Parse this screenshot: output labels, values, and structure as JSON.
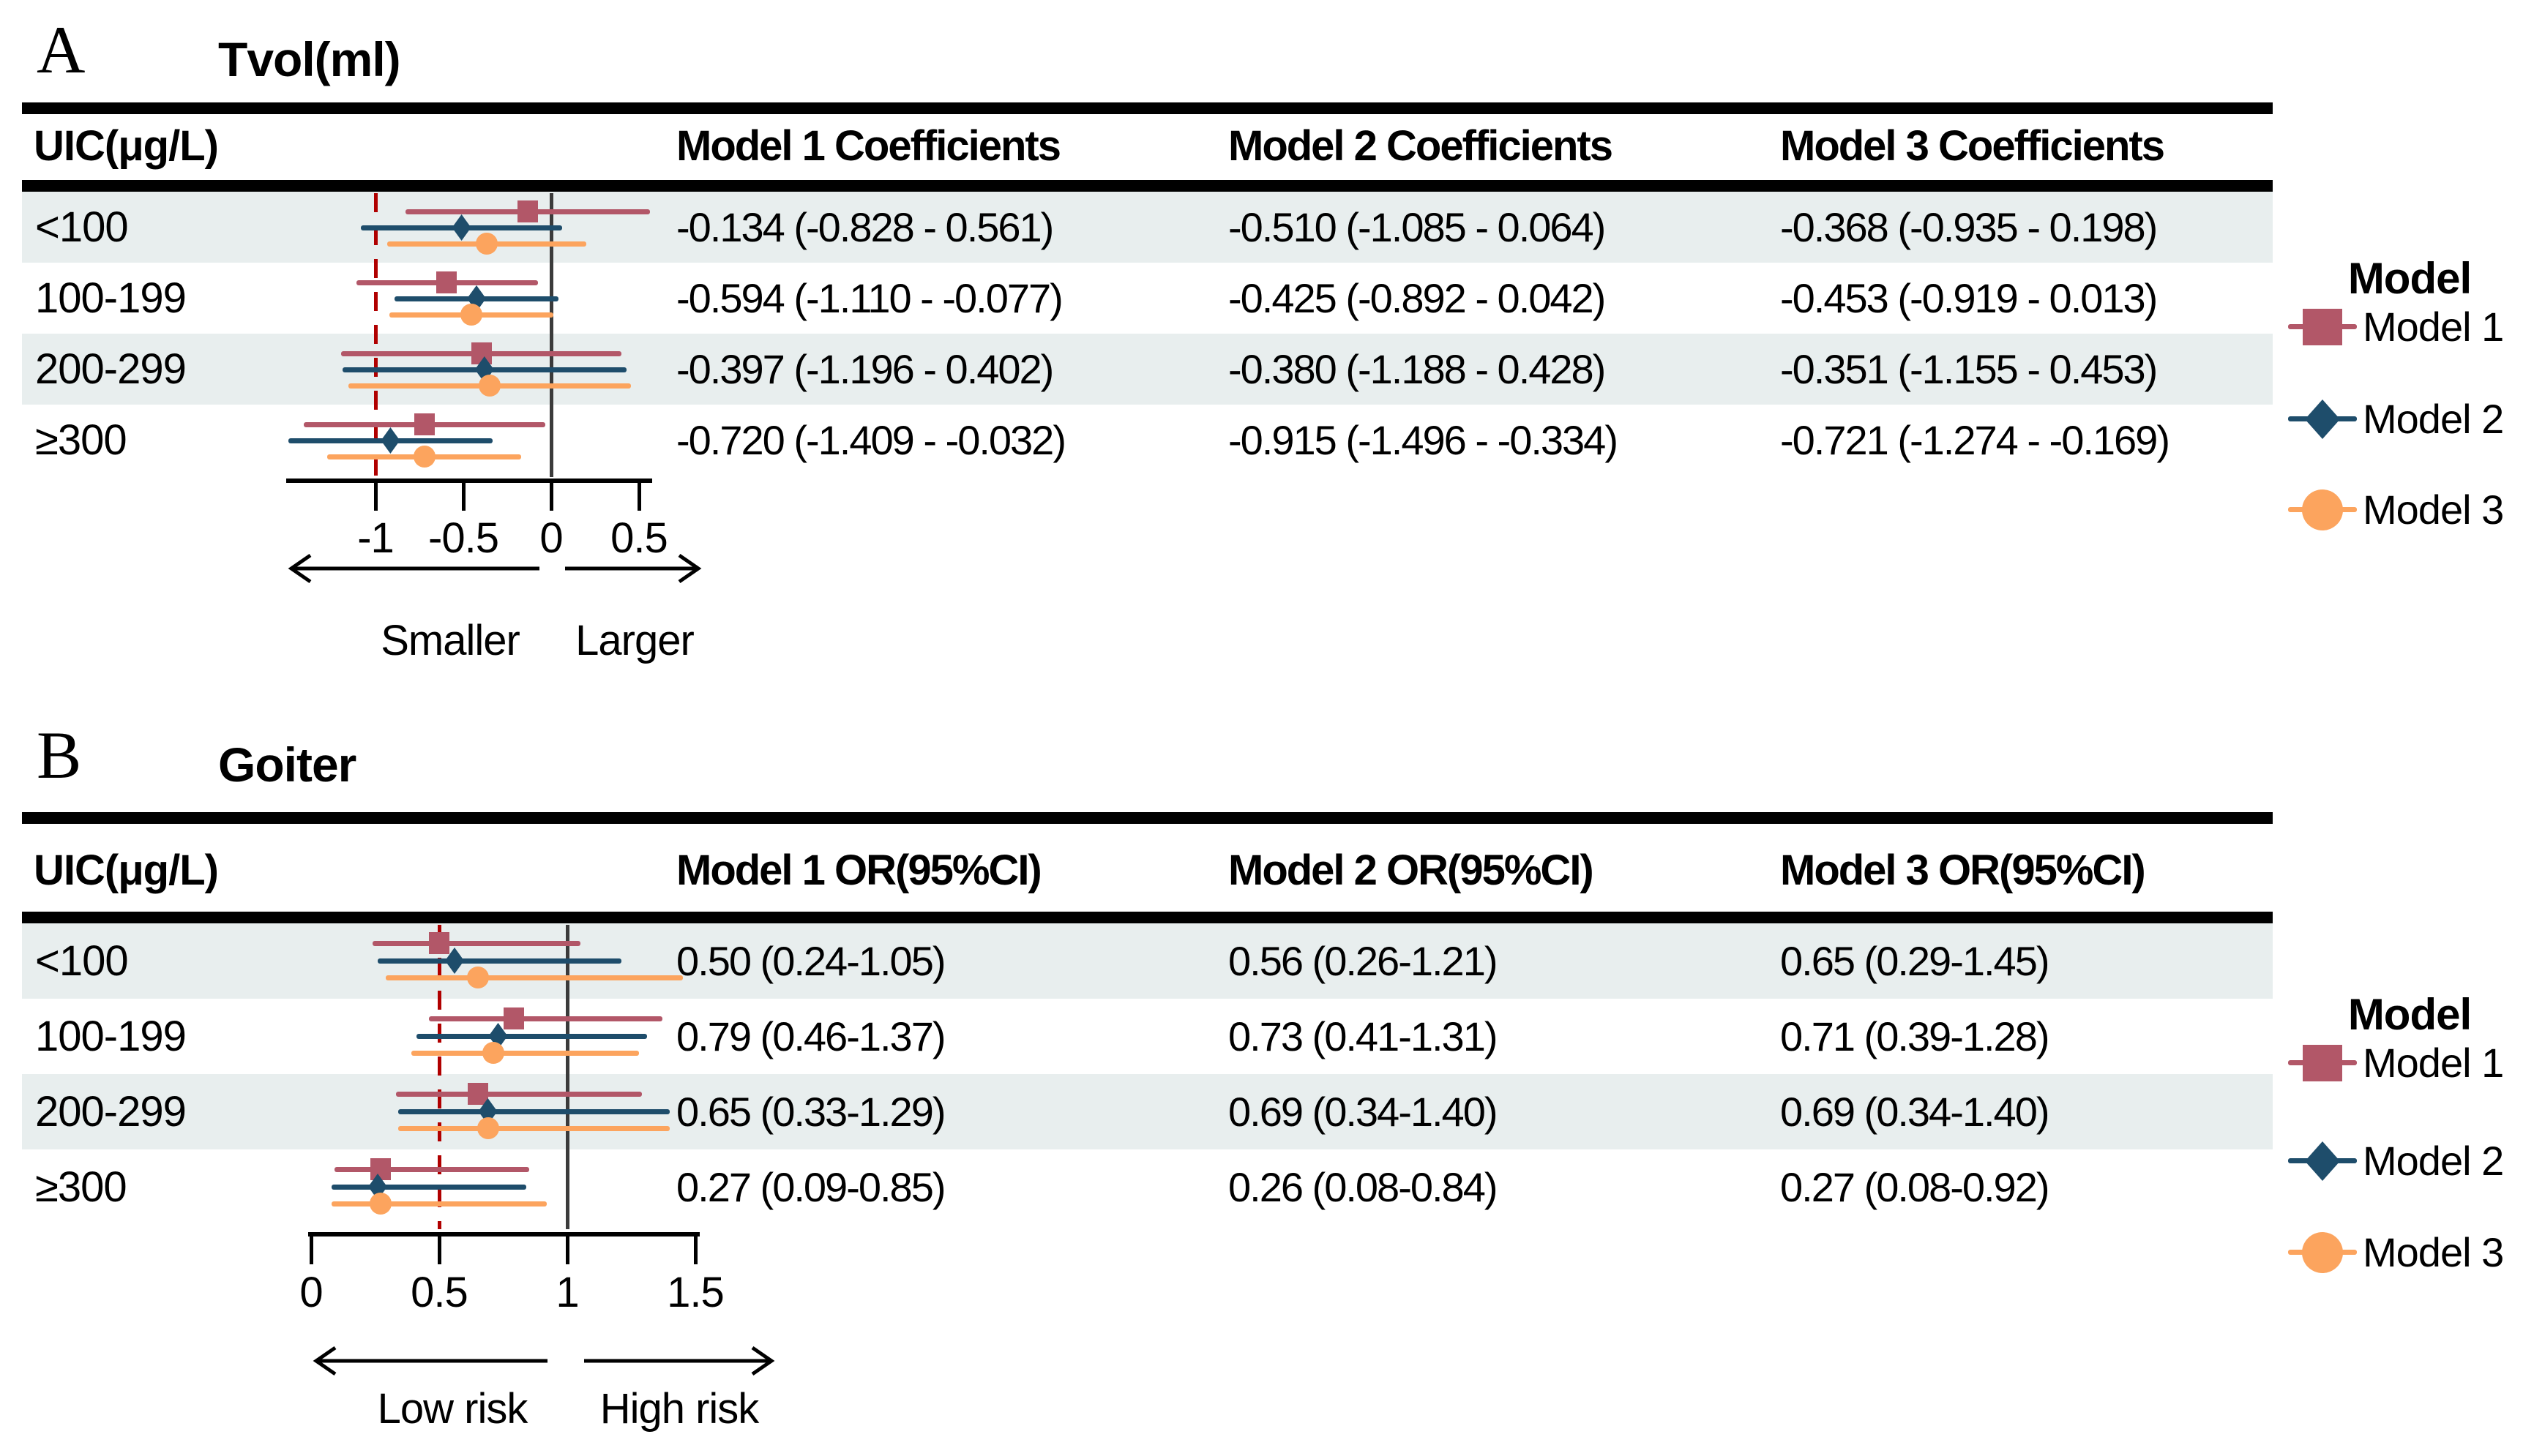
{
  "colors": {
    "model1": "#b25768",
    "model2": "#1e4d6b",
    "model3": "#fca45e",
    "dashed_reference_line": "#b00000",
    "solid_reference_line": "#3b3b3b",
    "row_band": "#e8eeee",
    "rule": "#000000",
    "text": "#000000"
  },
  "legend": {
    "title": "Model",
    "items": [
      {
        "label": "Model 1",
        "marker": "square",
        "color_key": "model1"
      },
      {
        "label": "Model 2",
        "marker": "diamond",
        "color_key": "model2"
      },
      {
        "label": "Model 3",
        "marker": "circle",
        "color_key": "model3"
      }
    ]
  },
  "chart_data": [
    {
      "type": "forest",
      "panel_letter": "A",
      "title": "Tvol(ml)",
      "row_header": "UIC(μg/L)",
      "columns": [
        "Model 1 Coefficients",
        "Model 2 Coefficients",
        "Model 3 Coefficients"
      ],
      "rows": [
        {
          "label": "<100",
          "cells": [
            "-0.134 (-0.828 - 0.561)",
            "-0.510 (-1.085 - 0.064)",
            "-0.368 (-0.935 - 0.198)"
          ],
          "series": [
            {
              "model": "Model 1",
              "est": -0.134,
              "lo": -0.828,
              "hi": 0.561
            },
            {
              "model": "Model 2",
              "est": -0.51,
              "lo": -1.085,
              "hi": 0.064
            },
            {
              "model": "Model 3",
              "est": -0.368,
              "lo": -0.935,
              "hi": 0.198
            }
          ]
        },
        {
          "label": "100-199",
          "cells": [
            "-0.594 (-1.110 - -0.077)",
            "-0.425 (-0.892 - 0.042)",
            "-0.453 (-0.919 - 0.013)"
          ],
          "series": [
            {
              "model": "Model 1",
              "est": -0.594,
              "lo": -1.11,
              "hi": -0.077
            },
            {
              "model": "Model 2",
              "est": -0.425,
              "lo": -0.892,
              "hi": 0.042
            },
            {
              "model": "Model 3",
              "est": -0.453,
              "lo": -0.919,
              "hi": 0.013
            }
          ]
        },
        {
          "label": "200-299",
          "cells": [
            "-0.397 (-1.196 - 0.402)",
            "-0.380 (-1.188 - 0.428)",
            "-0.351 (-1.155 - 0.453)"
          ],
          "series": [
            {
              "model": "Model 1",
              "est": -0.397,
              "lo": -1.196,
              "hi": 0.402
            },
            {
              "model": "Model 2",
              "est": -0.38,
              "lo": -1.188,
              "hi": 0.428
            },
            {
              "model": "Model 3",
              "est": -0.351,
              "lo": -1.155,
              "hi": 0.453
            }
          ]
        },
        {
          "label": "≥300",
          "cells": [
            "-0.720 (-1.409 - -0.032)",
            "-0.915 (-1.496 - -0.334)",
            "-0.721 (-1.274 - -0.169)"
          ],
          "series": [
            {
              "model": "Model 1",
              "est": -0.72,
              "lo": -1.409,
              "hi": -0.032
            },
            {
              "model": "Model 2",
              "est": -0.915,
              "lo": -1.496,
              "hi": -0.334
            },
            {
              "model": "Model 3",
              "est": -0.721,
              "lo": -1.274,
              "hi": -0.169
            }
          ]
        }
      ],
      "axis": {
        "ticks": [
          -1,
          -0.5,
          0,
          0.5
        ],
        "tick_labels": [
          "-1",
          "-0.5",
          "0",
          "0.5"
        ],
        "solid_ref": 0,
        "dashed_ref": -1,
        "xlim": [
          -1.51,
          0.58
        ]
      },
      "direction_labels": {
        "left": "Smaller",
        "right": "Larger"
      }
    },
    {
      "type": "forest",
      "panel_letter": "B",
      "title": "Goiter",
      "row_header": "UIC(μg/L)",
      "columns": [
        "Model 1 OR(95%CI)",
        "Model 2 OR(95%CI)",
        "Model 3 OR(95%CI)"
      ],
      "rows": [
        {
          "label": "<100",
          "cells": [
            "0.50 (0.24-1.05)",
            "0.56 (0.26-1.21)",
            "0.65 (0.29-1.45)"
          ],
          "series": [
            {
              "model": "Model 1",
              "est": 0.5,
              "lo": 0.24,
              "hi": 1.05
            },
            {
              "model": "Model 2",
              "est": 0.56,
              "lo": 0.26,
              "hi": 1.21
            },
            {
              "model": "Model 3",
              "est": 0.65,
              "lo": 0.29,
              "hi": 1.45
            }
          ]
        },
        {
          "label": "100-199",
          "cells": [
            "0.79 (0.46-1.37)",
            "0.73 (0.41-1.31)",
            "0.71 (0.39-1.28)"
          ],
          "series": [
            {
              "model": "Model 1",
              "est": 0.79,
              "lo": 0.46,
              "hi": 1.37
            },
            {
              "model": "Model 2",
              "est": 0.73,
              "lo": 0.41,
              "hi": 1.31
            },
            {
              "model": "Model 3",
              "est": 0.71,
              "lo": 0.39,
              "hi": 1.28
            }
          ]
        },
        {
          "label": "200-299",
          "cells": [
            "0.65 (0.33-1.29)",
            "0.69 (0.34-1.40)",
            "0.69 (0.34-1.40)"
          ],
          "series": [
            {
              "model": "Model 1",
              "est": 0.65,
              "lo": 0.33,
              "hi": 1.29
            },
            {
              "model": "Model 2",
              "est": 0.69,
              "lo": 0.34,
              "hi": 1.4
            },
            {
              "model": "Model 3",
              "est": 0.69,
              "lo": 0.34,
              "hi": 1.4
            }
          ]
        },
        {
          "label": "≥300",
          "cells": [
            "0.27 (0.09-0.85)",
            "0.26 (0.08-0.84)",
            "0.27 (0.08-0.92)"
          ],
          "series": [
            {
              "model": "Model 1",
              "est": 0.27,
              "lo": 0.09,
              "hi": 0.85
            },
            {
              "model": "Model 2",
              "est": 0.26,
              "lo": 0.08,
              "hi": 0.84
            },
            {
              "model": "Model 3",
              "est": 0.27,
              "lo": 0.08,
              "hi": 0.92
            }
          ]
        }
      ],
      "axis": {
        "ticks": [
          0,
          0.5,
          1,
          1.5
        ],
        "tick_labels": [
          "0",
          "0.5",
          "1",
          "1.5"
        ],
        "solid_ref": 1,
        "dashed_ref": 0.5,
        "xlim": [
          0,
          1.52
        ]
      },
      "direction_labels": {
        "left": "Low risk",
        "right": "High risk"
      }
    }
  ]
}
